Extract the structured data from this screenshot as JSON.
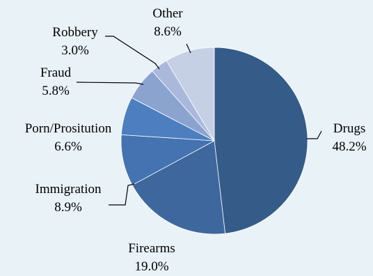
{
  "chart_data": {
    "type": "pie",
    "title": "",
    "start_angle_deg": 0,
    "direction": "clockwise",
    "slices": [
      {
        "label": "Drugs",
        "value": 48.2,
        "pct_label": "48.2%",
        "color": "#355b88"
      },
      {
        "label": "Firearms",
        "value": 19.0,
        "pct_label": "19.0%",
        "color": "#3e679d"
      },
      {
        "label": "Immigration",
        "value": 8.9,
        "pct_label": "8.9%",
        "color": "#4572b0"
      },
      {
        "label": "Porn/Prositution",
        "value": 6.6,
        "pct_label": "6.6%",
        "color": "#4d7fc0"
      },
      {
        "label": "Fraud",
        "value": 5.8,
        "pct_label": "5.8%",
        "color": "#8ba3cf"
      },
      {
        "label": "Robbery",
        "value": 3.0,
        "pct_label": "3.0%",
        "color": "#aab9db"
      },
      {
        "label": "Other",
        "value": 8.6,
        "pct_label": "8.6%",
        "color": "#c5d0e5"
      }
    ]
  }
}
